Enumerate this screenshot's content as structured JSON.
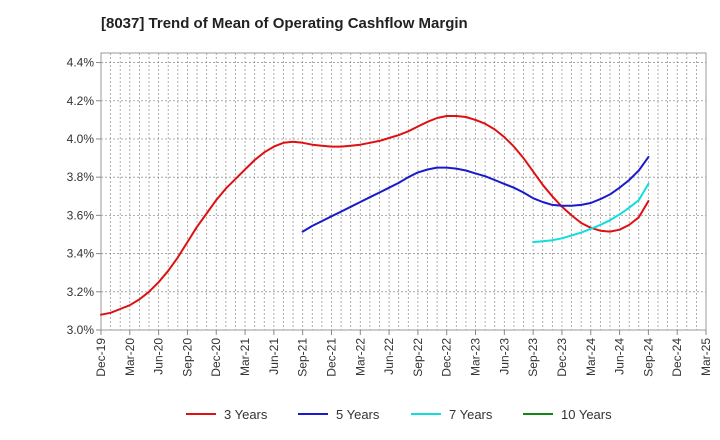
{
  "chart_data": {
    "type": "line",
    "title": "[8037]  Trend of Mean of Operating Cashflow Margin",
    "xlabel": "",
    "ylabel": "",
    "x_ticks": [
      "Dec-19",
      "Mar-20",
      "Jun-20",
      "Sep-20",
      "Dec-20",
      "Mar-21",
      "Jun-21",
      "Sep-21",
      "Dec-21",
      "Mar-22",
      "Jun-22",
      "Sep-22",
      "Dec-22",
      "Mar-23",
      "Jun-23",
      "Sep-23",
      "Dec-23",
      "Mar-24",
      "Jun-24",
      "Sep-24",
      "Dec-24",
      "Mar-25"
    ],
    "y_ticks": [
      "3.0%",
      "3.2%",
      "3.4%",
      "3.6%",
      "3.8%",
      "4.0%",
      "4.2%",
      "4.4%"
    ],
    "ylim": [
      3.0,
      4.45
    ],
    "grid": true,
    "legend_position": "bottom",
    "series": [
      {
        "name": "3 Years",
        "color": "#dd1111",
        "points": [
          [
            "Dec-19",
            3.08
          ],
          [
            "Jan-20",
            3.09
          ],
          [
            "Feb-20",
            3.11
          ],
          [
            "Mar-20",
            3.13
          ],
          [
            "Apr-20",
            3.16
          ],
          [
            "May-20",
            3.2
          ],
          [
            "Jun-20",
            3.25
          ],
          [
            "Jul-20",
            3.31
          ],
          [
            "Aug-20",
            3.38
          ],
          [
            "Sep-20",
            3.46
          ],
          [
            "Oct-20",
            3.54
          ],
          [
            "Nov-20",
            3.61
          ],
          [
            "Dec-20",
            3.68
          ],
          [
            "Jan-21",
            3.74
          ],
          [
            "Feb-21",
            3.79
          ],
          [
            "Mar-21",
            3.84
          ],
          [
            "Apr-21",
            3.89
          ],
          [
            "May-21",
            3.93
          ],
          [
            "Jun-21",
            3.96
          ],
          [
            "Jul-21",
            3.98
          ],
          [
            "Aug-21",
            3.985
          ],
          [
            "Sep-21",
            3.98
          ],
          [
            "Oct-21",
            3.97
          ],
          [
            "Nov-21",
            3.965
          ],
          [
            "Dec-21",
            3.96
          ],
          [
            "Jan-22",
            3.96
          ],
          [
            "Feb-22",
            3.965
          ],
          [
            "Mar-22",
            3.97
          ],
          [
            "Apr-22",
            3.98
          ],
          [
            "May-22",
            3.99
          ],
          [
            "Jun-22",
            4.005
          ],
          [
            "Jul-22",
            4.02
          ],
          [
            "Aug-22",
            4.04
          ],
          [
            "Sep-22",
            4.065
          ],
          [
            "Oct-22",
            4.09
          ],
          [
            "Nov-22",
            4.11
          ],
          [
            "Dec-22",
            4.12
          ],
          [
            "Jan-23",
            4.12
          ],
          [
            "Feb-23",
            4.115
          ],
          [
            "Mar-23",
            4.1
          ],
          [
            "Apr-23",
            4.08
          ],
          [
            "May-23",
            4.05
          ],
          [
            "Jun-23",
            4.01
          ],
          [
            "Jul-23",
            3.96
          ],
          [
            "Aug-23",
            3.9
          ],
          [
            "Sep-23",
            3.83
          ],
          [
            "Oct-23",
            3.76
          ],
          [
            "Nov-23",
            3.7
          ],
          [
            "Dec-23",
            3.645
          ],
          [
            "Jan-24",
            3.6
          ],
          [
            "Feb-24",
            3.56
          ],
          [
            "Mar-24",
            3.535
          ],
          [
            "Apr-24",
            3.52
          ],
          [
            "May-24",
            3.515
          ],
          [
            "Jun-24",
            3.525
          ],
          [
            "Jul-24",
            3.55
          ],
          [
            "Aug-24",
            3.59
          ],
          [
            "Sep-24",
            3.675
          ]
        ]
      },
      {
        "name": "5 Years",
        "color": "#1a1acc",
        "points": [
          [
            "Sep-21",
            3.515
          ],
          [
            "Oct-21",
            3.545
          ],
          [
            "Nov-21",
            3.57
          ],
          [
            "Dec-21",
            3.595
          ],
          [
            "Jan-22",
            3.62
          ],
          [
            "Feb-22",
            3.645
          ],
          [
            "Mar-22",
            3.67
          ],
          [
            "Apr-22",
            3.695
          ],
          [
            "May-22",
            3.72
          ],
          [
            "Jun-22",
            3.745
          ],
          [
            "Jul-22",
            3.77
          ],
          [
            "Aug-22",
            3.8
          ],
          [
            "Sep-22",
            3.825
          ],
          [
            "Oct-22",
            3.84
          ],
          [
            "Nov-22",
            3.85
          ],
          [
            "Dec-22",
            3.85
          ],
          [
            "Jan-23",
            3.845
          ],
          [
            "Feb-23",
            3.835
          ],
          [
            "Mar-23",
            3.82
          ],
          [
            "Apr-23",
            3.805
          ],
          [
            "May-23",
            3.785
          ],
          [
            "Jun-23",
            3.765
          ],
          [
            "Jul-23",
            3.745
          ],
          [
            "Aug-23",
            3.72
          ],
          [
            "Sep-23",
            3.69
          ],
          [
            "Oct-23",
            3.67
          ],
          [
            "Nov-23",
            3.655
          ],
          [
            "Dec-23",
            3.65
          ],
          [
            "Jan-24",
            3.65
          ],
          [
            "Feb-24",
            3.655
          ],
          [
            "Mar-24",
            3.665
          ],
          [
            "Apr-24",
            3.685
          ],
          [
            "May-24",
            3.71
          ],
          [
            "Jun-24",
            3.745
          ],
          [
            "Jul-24",
            3.785
          ],
          [
            "Aug-24",
            3.835
          ],
          [
            "Sep-24",
            3.905
          ]
        ]
      },
      {
        "name": "7 Years",
        "color": "#11dddd",
        "points": [
          [
            "Sep-23",
            3.46
          ],
          [
            "Oct-23",
            3.465
          ],
          [
            "Nov-23",
            3.47
          ],
          [
            "Dec-23",
            3.48
          ],
          [
            "Jan-24",
            3.495
          ],
          [
            "Feb-24",
            3.51
          ],
          [
            "Mar-24",
            3.53
          ],
          [
            "Apr-24",
            3.55
          ],
          [
            "May-24",
            3.575
          ],
          [
            "Jun-24",
            3.605
          ],
          [
            "Jul-24",
            3.64
          ],
          [
            "Aug-24",
            3.68
          ],
          [
            "Sep-24",
            3.765
          ]
        ]
      },
      {
        "name": "10 Years",
        "color": "#118811",
        "points": []
      }
    ]
  }
}
